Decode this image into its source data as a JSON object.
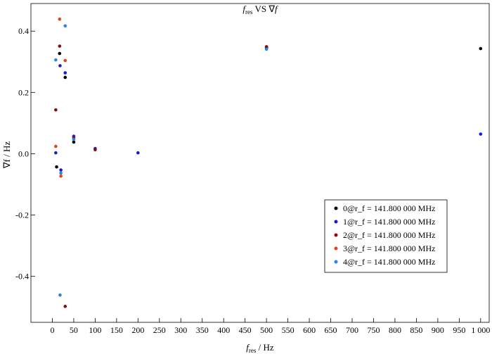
{
  "chart_data": {
    "type": "scatter",
    "title_main": "f",
    "title_sub": "res",
    "title_mid": " VS ∇",
    "title_end": "f",
    "xlabel_main": "f",
    "xlabel_sub": "res",
    "xlabel_unit": " / Hz",
    "ylabel": "∇f / Hz",
    "xlim": [
      -50,
      1020
    ],
    "ylim": [
      -0.55,
      0.49
    ],
    "x_ticks": [
      0,
      50,
      100,
      150,
      200,
      250,
      300,
      350,
      400,
      450,
      500,
      550,
      600,
      650,
      700,
      750,
      800,
      850,
      900,
      950,
      1000
    ],
    "x_tick_labels": [
      "0",
      "50",
      "100",
      "150",
      "200",
      "250",
      "300",
      "350",
      "400",
      "450",
      "500",
      "550",
      "600",
      "650",
      "700",
      "750",
      "800",
      "850",
      "900",
      "950",
      "1 000"
    ],
    "y_ticks": [
      -0.4,
      -0.2,
      0.0,
      0.2,
      0.4
    ],
    "y_tick_labels": [
      "-0.4",
      "-0.2",
      "0.0",
      "0.2",
      "0.4"
    ],
    "grid": false,
    "legend_position": "lower-right",
    "series": [
      {
        "name": "0@r_f = 141.800 000 MHz",
        "color": "#000000",
        "points": [
          [
            10,
            -0.043
          ],
          [
            17,
            0.327
          ],
          [
            30,
            0.249
          ],
          [
            50,
            0.038
          ],
          [
            500,
            0.347
          ],
          [
            1000,
            0.343
          ]
        ]
      },
      {
        "name": "1@r_f = 141.800 000 MHz",
        "color": "#1a1ad6",
        "points": [
          [
            8,
            0.003
          ],
          [
            18,
            0.287
          ],
          [
            20,
            -0.053
          ],
          [
            30,
            0.264
          ],
          [
            50,
            0.057
          ],
          [
            100,
            0.017
          ],
          [
            200,
            0.003
          ],
          [
            500,
            0.345
          ],
          [
            1000,
            0.064
          ]
        ]
      },
      {
        "name": "2@r_f = 141.800 000 MHz",
        "color": "#8b0a0a",
        "points": [
          [
            8,
            0.143
          ],
          [
            17,
            0.351
          ],
          [
            30,
            -0.498
          ],
          [
            50,
            0.052
          ],
          [
            100,
            0.013
          ],
          [
            500,
            0.349
          ]
        ]
      },
      {
        "name": "3@r_f = 141.800 000 MHz",
        "color": "#e0451f",
        "points": [
          [
            8,
            0.024
          ],
          [
            17,
            0.439
          ],
          [
            20,
            -0.073
          ],
          [
            30,
            0.304
          ]
        ]
      },
      {
        "name": "4@r_f = 141.800 000 MHz",
        "color": "#2b83e6",
        "points": [
          [
            8,
            0.306
          ],
          [
            18,
            -0.461
          ],
          [
            20,
            -0.063
          ],
          [
            30,
            0.417
          ],
          [
            50,
            0.047
          ],
          [
            500,
            0.341
          ]
        ]
      }
    ]
  }
}
